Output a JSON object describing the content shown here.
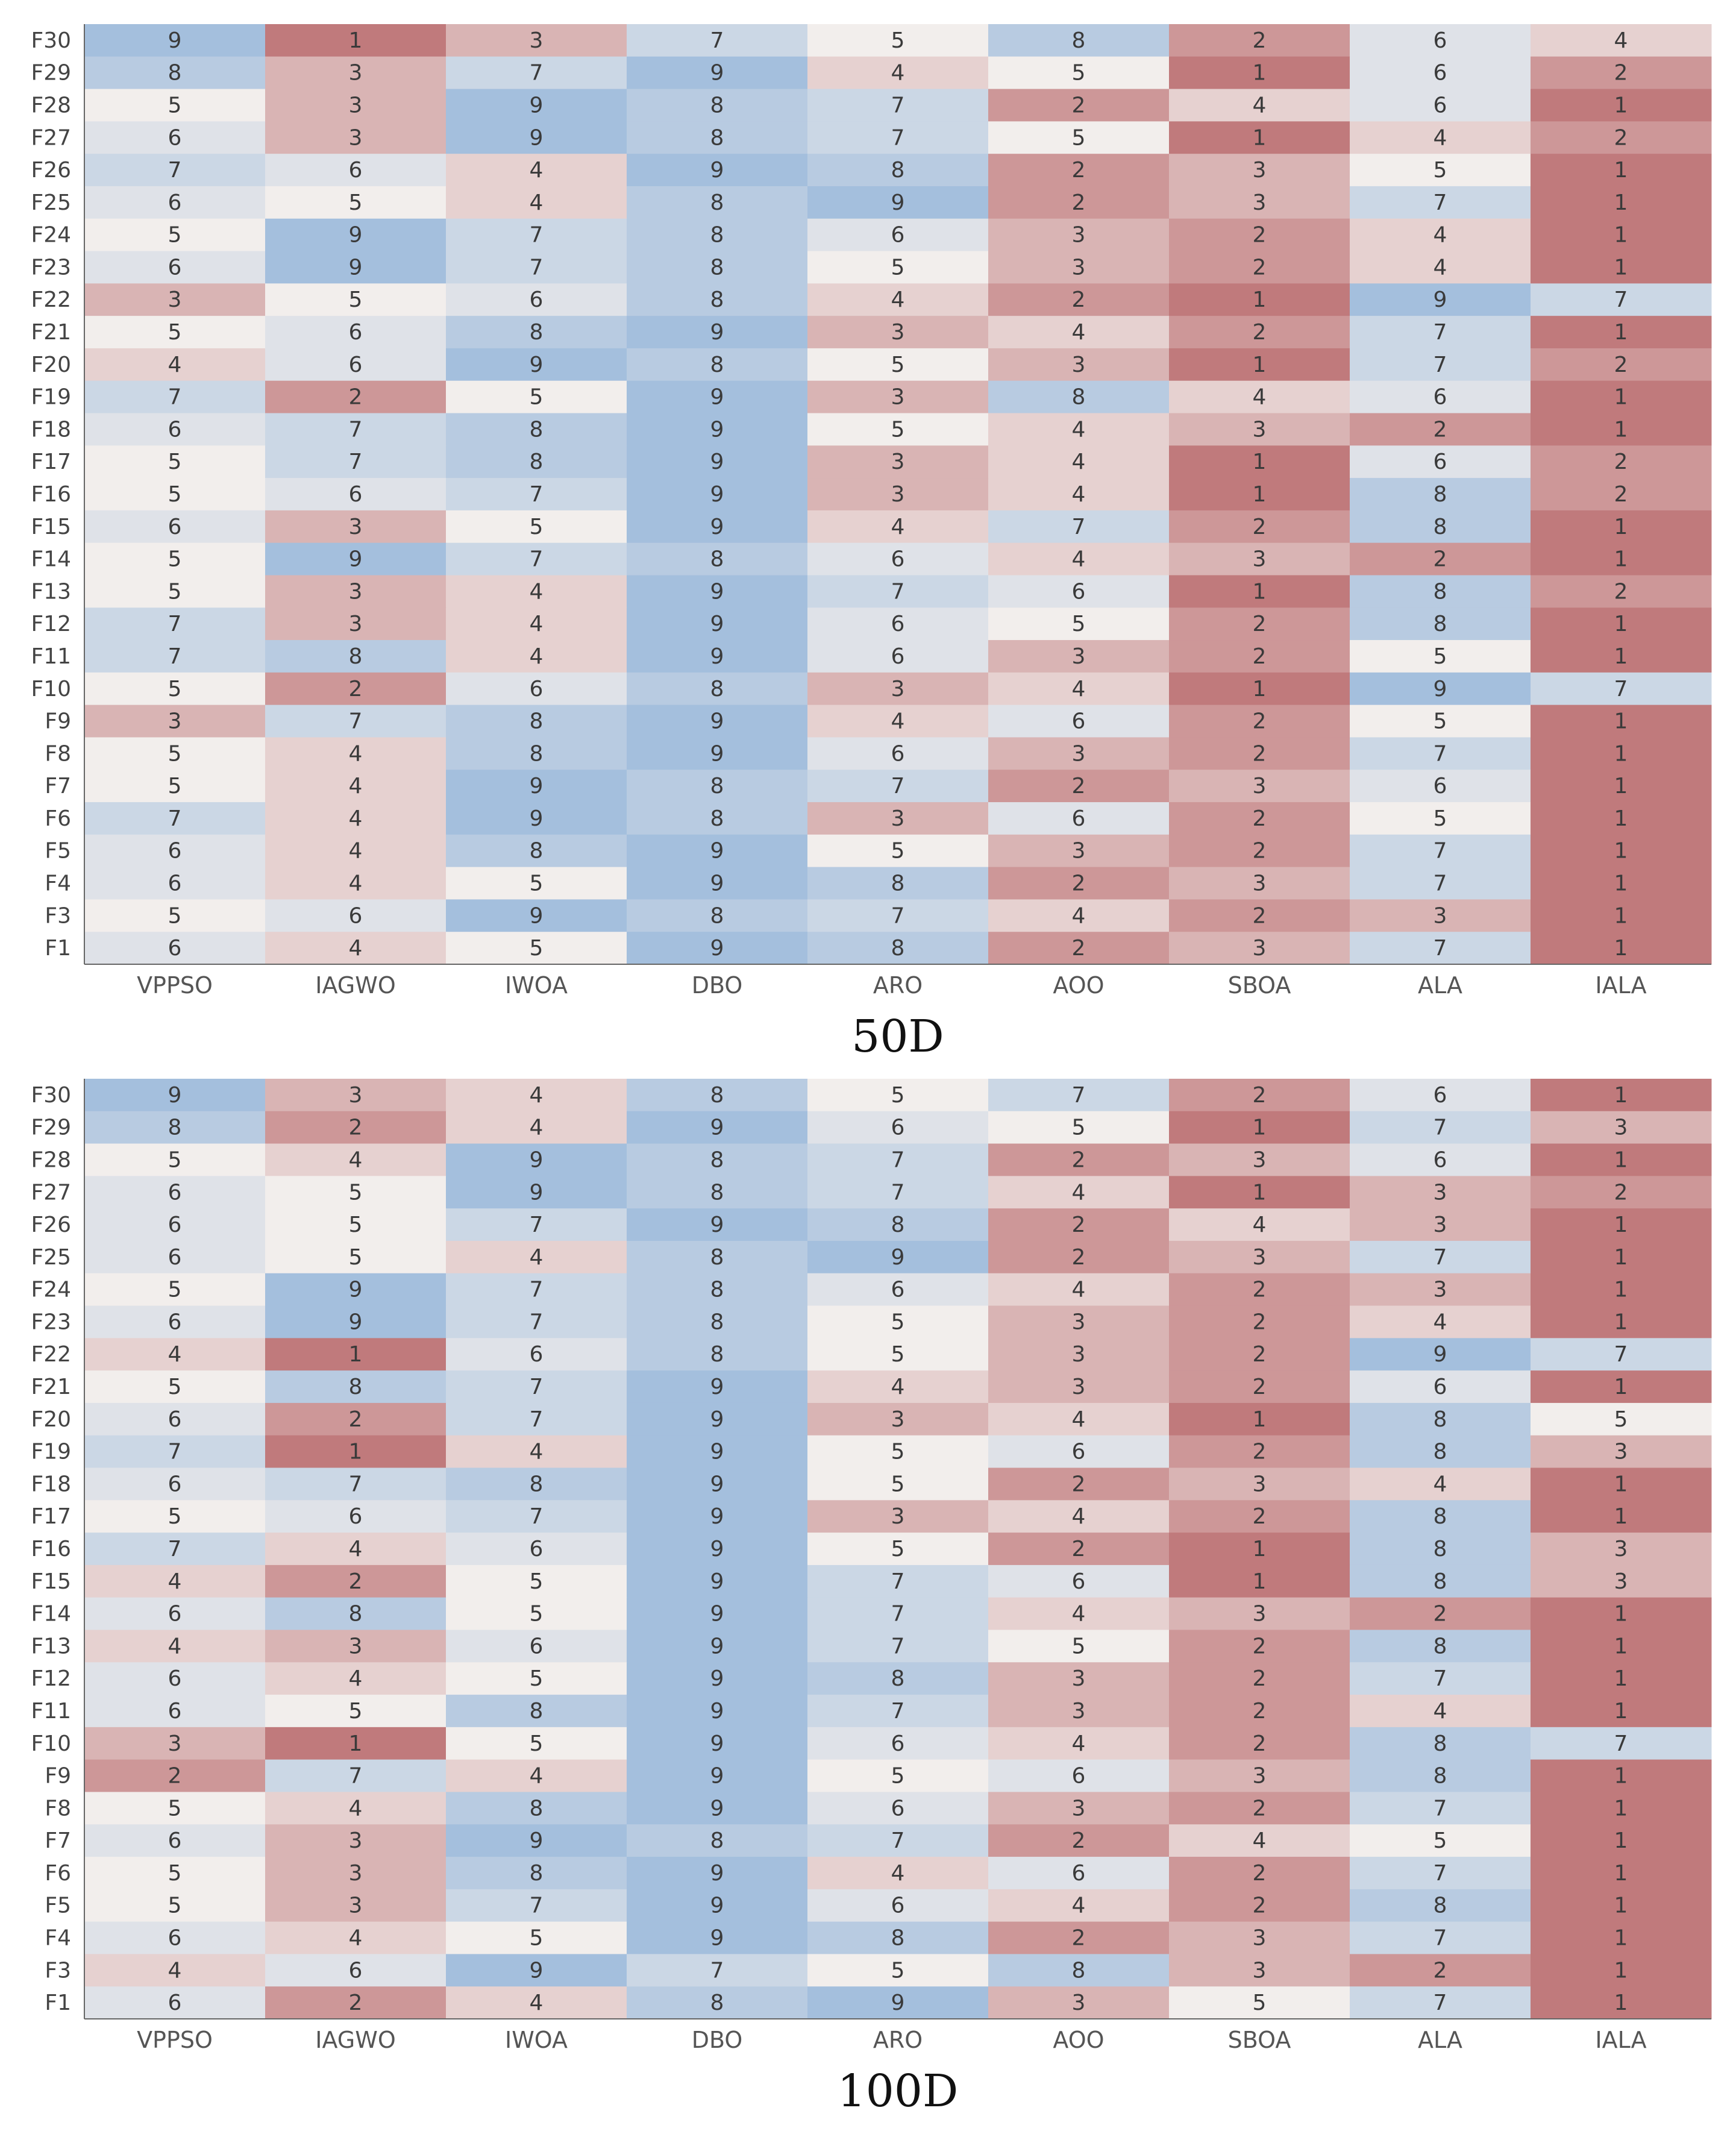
{
  "chart_data": [
    {
      "type": "heatmap",
      "title": "50D",
      "xlabel": "",
      "ylabel": "",
      "x": [
        "VPPSO",
        "IAGWO",
        "IWOA",
        "DBO",
        "ARO",
        "AOO",
        "SBOA",
        "ALA",
        "IALA"
      ],
      "y": [
        "F30",
        "F29",
        "F28",
        "F27",
        "F26",
        "F25",
        "F24",
        "F23",
        "F22",
        "F21",
        "F20",
        "F19",
        "F18",
        "F17",
        "F16",
        "F15",
        "F14",
        "F13",
        "F12",
        "F11",
        "F10",
        "F9",
        "F8",
        "F7",
        "F6",
        "F5",
        "F4",
        "F3",
        "F1"
      ],
      "values": [
        [
          9,
          1,
          3,
          7,
          5,
          8,
          2,
          6,
          4
        ],
        [
          8,
          3,
          7,
          9,
          4,
          5,
          1,
          6,
          2
        ],
        [
          5,
          3,
          9,
          8,
          7,
          2,
          4,
          6,
          1
        ],
        [
          6,
          3,
          9,
          8,
          7,
          5,
          1,
          4,
          2
        ],
        [
          7,
          6,
          4,
          9,
          8,
          2,
          3,
          5,
          1
        ],
        [
          6,
          5,
          4,
          8,
          9,
          2,
          3,
          7,
          1
        ],
        [
          5,
          9,
          7,
          8,
          6,
          3,
          2,
          4,
          1
        ],
        [
          6,
          9,
          7,
          8,
          5,
          3,
          2,
          4,
          1
        ],
        [
          3,
          5,
          6,
          8,
          4,
          2,
          1,
          9,
          7
        ],
        [
          5,
          6,
          8,
          9,
          3,
          4,
          2,
          7,
          1
        ],
        [
          4,
          6,
          9,
          8,
          5,
          3,
          1,
          7,
          2
        ],
        [
          7,
          2,
          5,
          9,
          3,
          8,
          4,
          6,
          1
        ],
        [
          6,
          7,
          8,
          9,
          5,
          4,
          3,
          2,
          1
        ],
        [
          5,
          7,
          8,
          9,
          3,
          4,
          1,
          6,
          2
        ],
        [
          5,
          6,
          7,
          9,
          3,
          4,
          1,
          8,
          2
        ],
        [
          6,
          3,
          5,
          9,
          4,
          7,
          2,
          8,
          1
        ],
        [
          5,
          9,
          7,
          8,
          6,
          4,
          3,
          2,
          1
        ],
        [
          5,
          3,
          4,
          9,
          7,
          6,
          1,
          8,
          2
        ],
        [
          7,
          3,
          4,
          9,
          6,
          5,
          2,
          8,
          1
        ],
        [
          7,
          8,
          4,
          9,
          6,
          3,
          2,
          5,
          1
        ],
        [
          5,
          2,
          6,
          8,
          3,
          4,
          1,
          9,
          7
        ],
        [
          3,
          7,
          8,
          9,
          4,
          6,
          2,
          5,
          1
        ],
        [
          5,
          4,
          8,
          9,
          6,
          3,
          2,
          7,
          1
        ],
        [
          5,
          4,
          9,
          8,
          7,
          2,
          3,
          6,
          1
        ],
        [
          7,
          4,
          9,
          8,
          3,
          6,
          2,
          5,
          1
        ],
        [
          6,
          4,
          8,
          9,
          5,
          3,
          2,
          7,
          1
        ],
        [
          6,
          4,
          5,
          9,
          8,
          2,
          3,
          7,
          1
        ],
        [
          5,
          6,
          9,
          8,
          7,
          4,
          2,
          3,
          1
        ],
        [
          6,
          4,
          5,
          9,
          8,
          2,
          3,
          7,
          1
        ]
      ],
      "colorscale": {
        "min": 1,
        "max": 9,
        "low": "#c07a7c",
        "mid": "#f2eeec",
        "high": "#a4bfdd"
      }
    },
    {
      "type": "heatmap",
      "title": "100D",
      "xlabel": "",
      "ylabel": "",
      "x": [
        "VPPSO",
        "IAGWO",
        "IWOA",
        "DBO",
        "ARO",
        "AOO",
        "SBOA",
        "ALA",
        "IALA"
      ],
      "y": [
        "F30",
        "F29",
        "F28",
        "F27",
        "F26",
        "F25",
        "F24",
        "F23",
        "F22",
        "F21",
        "F20",
        "F19",
        "F18",
        "F17",
        "F16",
        "F15",
        "F14",
        "F13",
        "F12",
        "F11",
        "F10",
        "F9",
        "F8",
        "F7",
        "F6",
        "F5",
        "F4",
        "F3",
        "F1"
      ],
      "values": [
        [
          9,
          3,
          4,
          8,
          5,
          7,
          2,
          6,
          1
        ],
        [
          8,
          2,
          4,
          9,
          6,
          5,
          1,
          7,
          3
        ],
        [
          5,
          4,
          9,
          8,
          7,
          2,
          3,
          6,
          1
        ],
        [
          6,
          5,
          9,
          8,
          7,
          4,
          1,
          3,
          2
        ],
        [
          6,
          5,
          7,
          9,
          8,
          2,
          4,
          3,
          1
        ],
        [
          6,
          5,
          4,
          8,
          9,
          2,
          3,
          7,
          1
        ],
        [
          5,
          9,
          7,
          8,
          6,
          4,
          2,
          3,
          1
        ],
        [
          6,
          9,
          7,
          8,
          5,
          3,
          2,
          4,
          1
        ],
        [
          4,
          1,
          6,
          8,
          5,
          3,
          2,
          9,
          7
        ],
        [
          5,
          8,
          7,
          9,
          4,
          3,
          2,
          6,
          1
        ],
        [
          6,
          2,
          7,
          9,
          3,
          4,
          1,
          8,
          5
        ],
        [
          7,
          1,
          4,
          9,
          5,
          6,
          2,
          8,
          3
        ],
        [
          6,
          7,
          8,
          9,
          5,
          2,
          3,
          4,
          1
        ],
        [
          5,
          6,
          7,
          9,
          3,
          4,
          2,
          8,
          1
        ],
        [
          7,
          4,
          6,
          9,
          5,
          2,
          1,
          8,
          3
        ],
        [
          4,
          2,
          5,
          9,
          7,
          6,
          1,
          8,
          3
        ],
        [
          6,
          8,
          5,
          9,
          7,
          4,
          3,
          2,
          1
        ],
        [
          4,
          3,
          6,
          9,
          7,
          5,
          2,
          8,
          1
        ],
        [
          6,
          4,
          5,
          9,
          8,
          3,
          2,
          7,
          1
        ],
        [
          6,
          5,
          8,
          9,
          7,
          3,
          2,
          4,
          1
        ],
        [
          3,
          1,
          5,
          9,
          6,
          4,
          2,
          8,
          7
        ],
        [
          2,
          7,
          4,
          9,
          5,
          6,
          3,
          8,
          1
        ],
        [
          5,
          4,
          8,
          9,
          6,
          3,
          2,
          7,
          1
        ],
        [
          6,
          3,
          9,
          8,
          7,
          2,
          4,
          5,
          1
        ],
        [
          5,
          3,
          8,
          9,
          4,
          6,
          2,
          7,
          1
        ],
        [
          5,
          3,
          7,
          9,
          6,
          4,
          2,
          8,
          1
        ],
        [
          6,
          4,
          5,
          9,
          8,
          2,
          3,
          7,
          1
        ],
        [
          4,
          6,
          9,
          7,
          5,
          8,
          3,
          2,
          1
        ],
        [
          6,
          2,
          4,
          8,
          9,
          3,
          5,
          7,
          1
        ]
      ],
      "colorscale": {
        "min": 1,
        "max": 9,
        "low": "#c07a7c",
        "mid": "#f2eeec",
        "high": "#a4bfdd"
      }
    }
  ]
}
